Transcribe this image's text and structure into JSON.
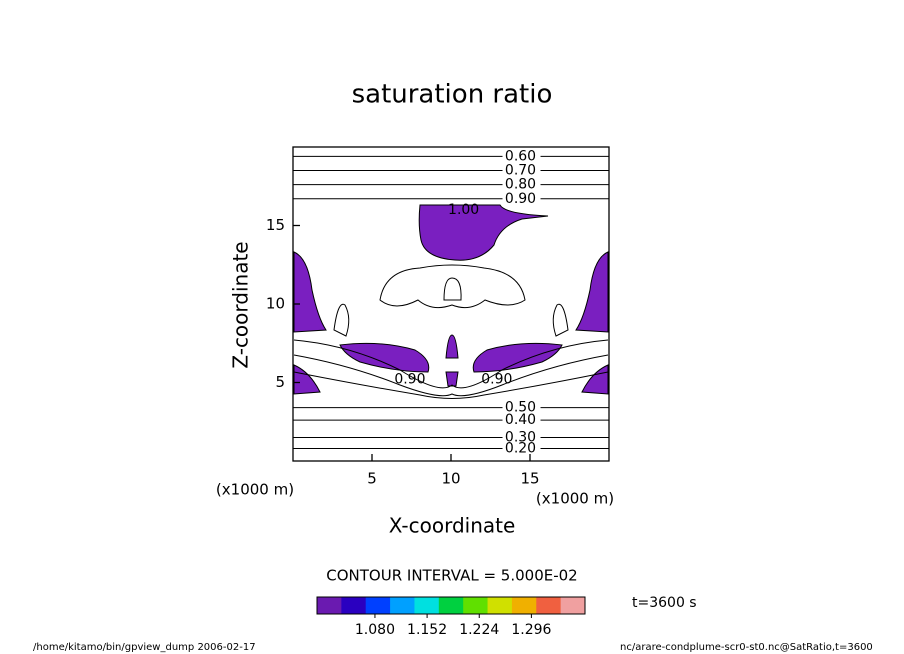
{
  "chart_data": {
    "type": "contour",
    "title": "saturation ratio",
    "x_label": "X-coordinate",
    "y_label": "Z-coordinate",
    "axis_unit": "(x1000 m)",
    "xlim": [
      0,
      20
    ],
    "ylim": [
      0,
      20
    ],
    "xticks": [
      5,
      10,
      15
    ],
    "yticks": [
      5,
      10,
      15
    ],
    "fill_color": "#7a1fc0",
    "contour_labels": [
      {
        "value": 0.6,
        "label": "0.60",
        "x": 14.4,
        "y": 19.4
      },
      {
        "value": 0.7,
        "label": "0.70",
        "x": 14.4,
        "y": 18.5
      },
      {
        "value": 0.8,
        "label": "0.80",
        "x": 14.4,
        "y": 17.6
      },
      {
        "value": 0.9,
        "label": "0.90",
        "x": 14.4,
        "y": 16.7
      },
      {
        "value": 1.0,
        "label": "1.00",
        "x": 10.8,
        "y": 16.0
      },
      {
        "value": 0.9,
        "label": "0.90",
        "x": 7.4,
        "y": 5.2
      },
      {
        "value": 0.9,
        "label": "0.90",
        "x": 12.9,
        "y": 5.2
      },
      {
        "value": 0.5,
        "label": "0.50",
        "x": 14.4,
        "y": 3.4
      },
      {
        "value": 0.4,
        "label": "0.40",
        "x": 14.4,
        "y": 2.6
      },
      {
        "value": 0.3,
        "label": "0.30",
        "x": 14.4,
        "y": 1.5
      },
      {
        "value": 0.2,
        "label": "0.20",
        "x": 14.4,
        "y": 0.8
      }
    ],
    "contour_interval": "CONTOUR INTERVAL = 5.000E-02",
    "colorbar": {
      "lim": [
        1.0,
        1.37
      ],
      "ticks": [
        {
          "value": 1.08,
          "label": "1.080"
        },
        {
          "value": 1.152,
          "label": "1.152"
        },
        {
          "value": 1.224,
          "label": "1.224"
        },
        {
          "value": 1.296,
          "label": "1.296"
        }
      ],
      "colors": [
        "#6a1ab0",
        "#2a00c0",
        "#0040ff",
        "#00a0ff",
        "#00e0e0",
        "#00d040",
        "#60e000",
        "#d0e000",
        "#f0b000",
        "#f06040",
        "#f0a0a0"
      ]
    },
    "time_label": "t=3600 s",
    "footer_left": "/home/kitamo/bin/gpview_dump  2006-02-17",
    "footer_right": "nc/arare-condplume-scr0-st0.nc@SatRatio,t=3600"
  }
}
